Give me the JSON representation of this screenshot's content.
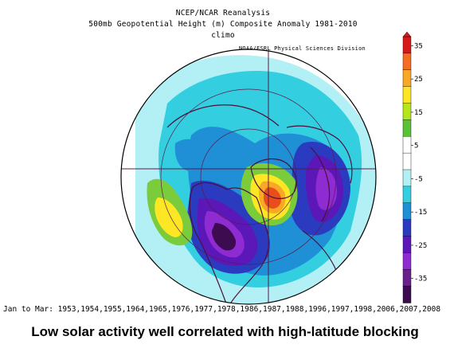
{
  "header": {
    "line1": "NCEP/NCAR Reanalysis",
    "line2": "500mb Geopotential Height (m) Composite Anomaly 1981-2010 climo",
    "credit": "NOAA/ESRL Physical Sciences Division"
  },
  "footer": {
    "years": "Jan to Mar: 1953,1954,1955,1964,1965,1976,1977,1978,1986,1987,1988,1996,1997,1998,2006,2007,2008"
  },
  "caption": "Low solar activity well correlated with high-latitude blocking",
  "colorbar": {
    "labels": [
      "35",
      "25",
      "15",
      "5",
      "-5",
      "-15",
      "-25",
      "-35"
    ],
    "colors": [
      "#d7191c",
      "#f46d22",
      "#f9a825",
      "#fde725",
      "#b5e61d",
      "#5bc236",
      "#ffffff",
      "#ffffff",
      "#b3f0f5",
      "#33cfe0",
      "#1f8fd6",
      "#2b3bbf",
      "#5b17b8",
      "#8e2bd1",
      "#6a1f8a",
      "#3d0b4f"
    ]
  },
  "map": {
    "projection": "north-polar-stereographic",
    "colors": {
      "ocean": "#ffffff",
      "cyan_light": "#b3f0f5",
      "cyan": "#33cfe0",
      "blue": "#1f8fd6",
      "indigo": "#2b3bbf",
      "purple": "#5b17b8",
      "violet": "#8e2bd1",
      "darkpurple": "#3d0b4f",
      "yellow": "#fde725",
      "orange": "#f9a825",
      "red": "#e84d1c",
      "green": "#7acc3a"
    }
  }
}
